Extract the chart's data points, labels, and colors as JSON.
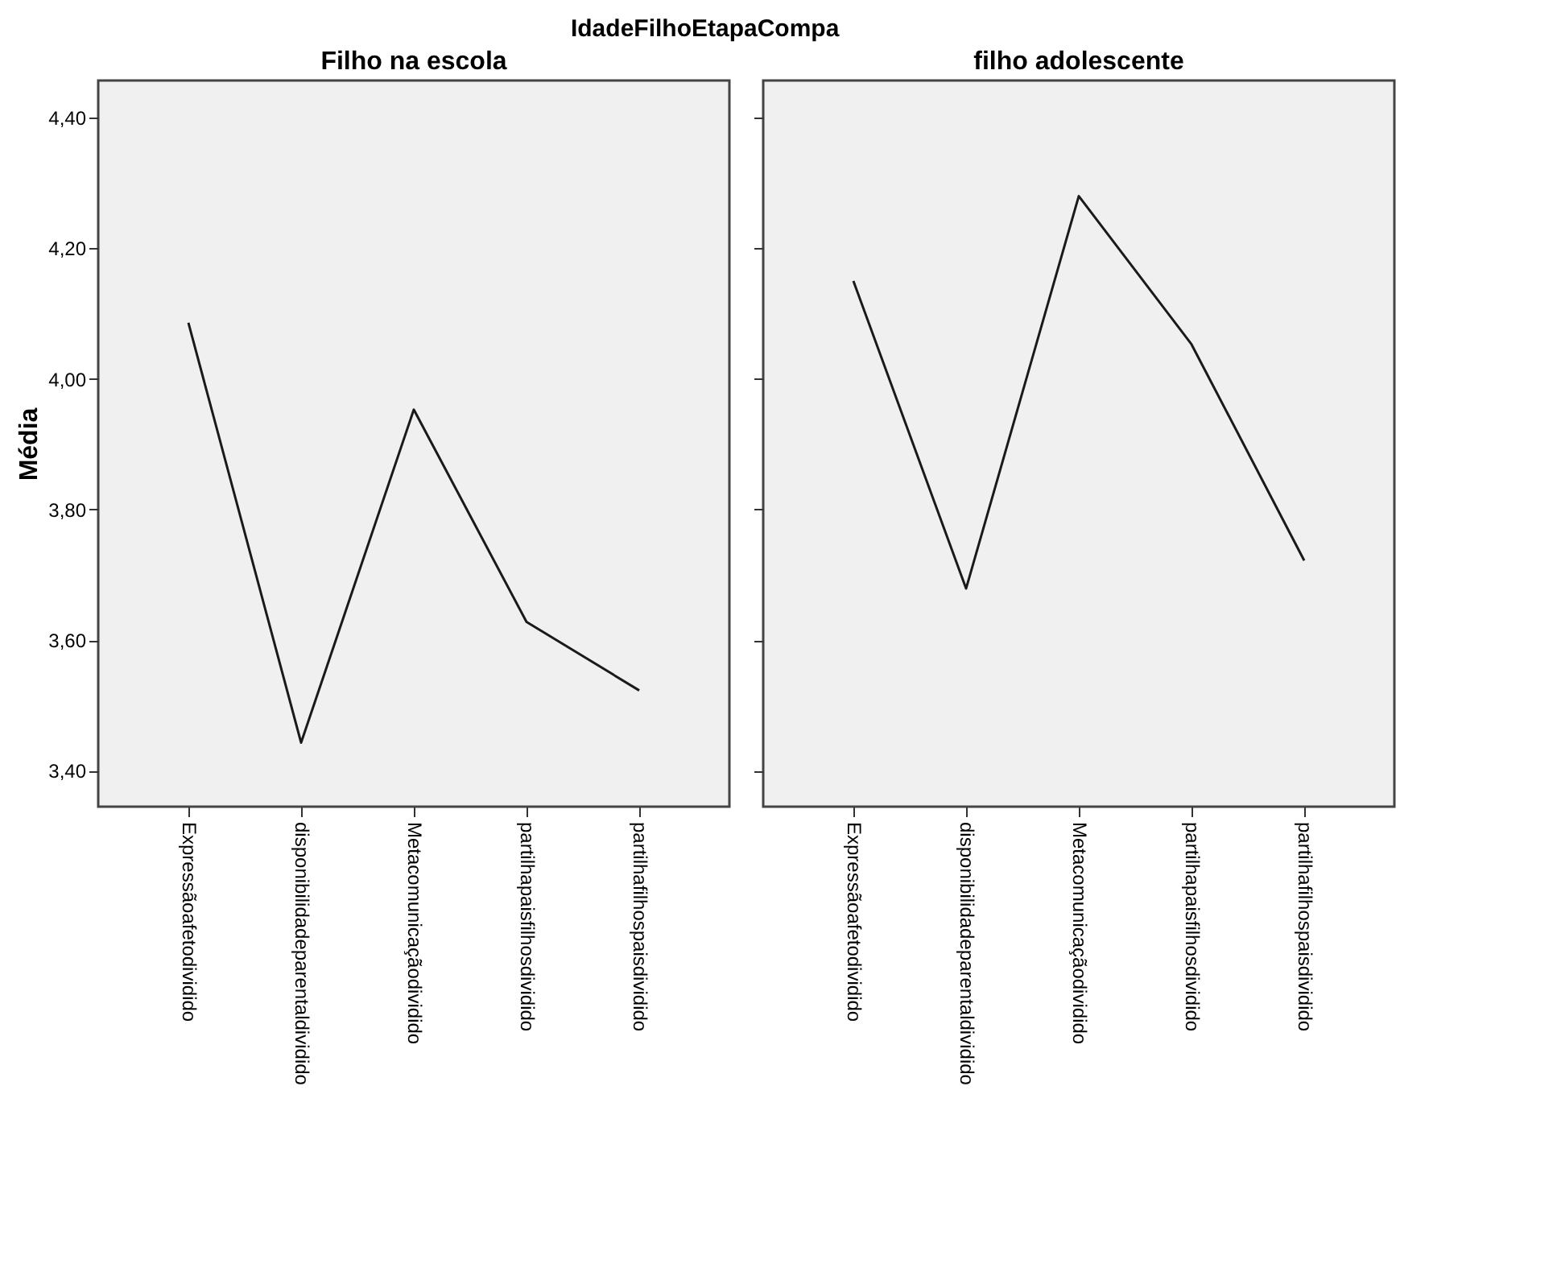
{
  "chart_data": [
    {
      "type": "line",
      "title": "Filho na escola",
      "ylabel": "Média",
      "annotations": [
        "IdadeFilhoEtapaCompa"
      ],
      "categories": [
        "Expressãoafetodividido",
        "disponibilidadeparentaldividido",
        "Metacomunicaçãodividido",
        "partilhapaisfilhosdividido",
        "partilhafilhospaisdividido"
      ],
      "series": [
        {
          "color": "#1a1a1a",
          "values": [
            4.086,
            3.443,
            3.953,
            3.628,
            3.523
          ]
        }
      ],
      "ylim": [
        3.345,
        4.457
      ],
      "yticks": [
        {
          "value": 3.4,
          "label": "3,40"
        },
        {
          "value": 3.6,
          "label": "3,60"
        },
        {
          "value": 3.8,
          "label": "3,80"
        },
        {
          "value": 4.0,
          "label": "4,00"
        },
        {
          "value": 4.2,
          "label": "4,20"
        },
        {
          "value": 4.4,
          "label": "4,40"
        }
      ],
      "grid": false,
      "marker": "none",
      "line_style": "solid"
    },
    {
      "type": "line",
      "title": "filho adolescente",
      "categories": [
        "Expressãoafetodividido",
        "disponibilidadeparentaldividido",
        "Metacomunicaçãodividido",
        "partilhapaisfilhosdividido",
        "partilhafilhospaisdividido"
      ],
      "series": [
        {
          "color": "#1a1a1a",
          "values": [
            4.15,
            3.679,
            4.28,
            4.053,
            3.722
          ]
        }
      ],
      "ylim": [
        3.345,
        4.457
      ],
      "yticks": [
        {
          "value": 3.4,
          "label": null
        },
        {
          "value": 3.6,
          "label": null
        },
        {
          "value": 3.8,
          "label": null
        },
        {
          "value": 4.0,
          "label": null
        },
        {
          "value": 4.2,
          "label": null
        },
        {
          "value": 4.4,
          "label": null
        }
      ],
      "tick_labels": "x",
      "grid": false,
      "marker": "none",
      "line_style": "solid"
    }
  ]
}
